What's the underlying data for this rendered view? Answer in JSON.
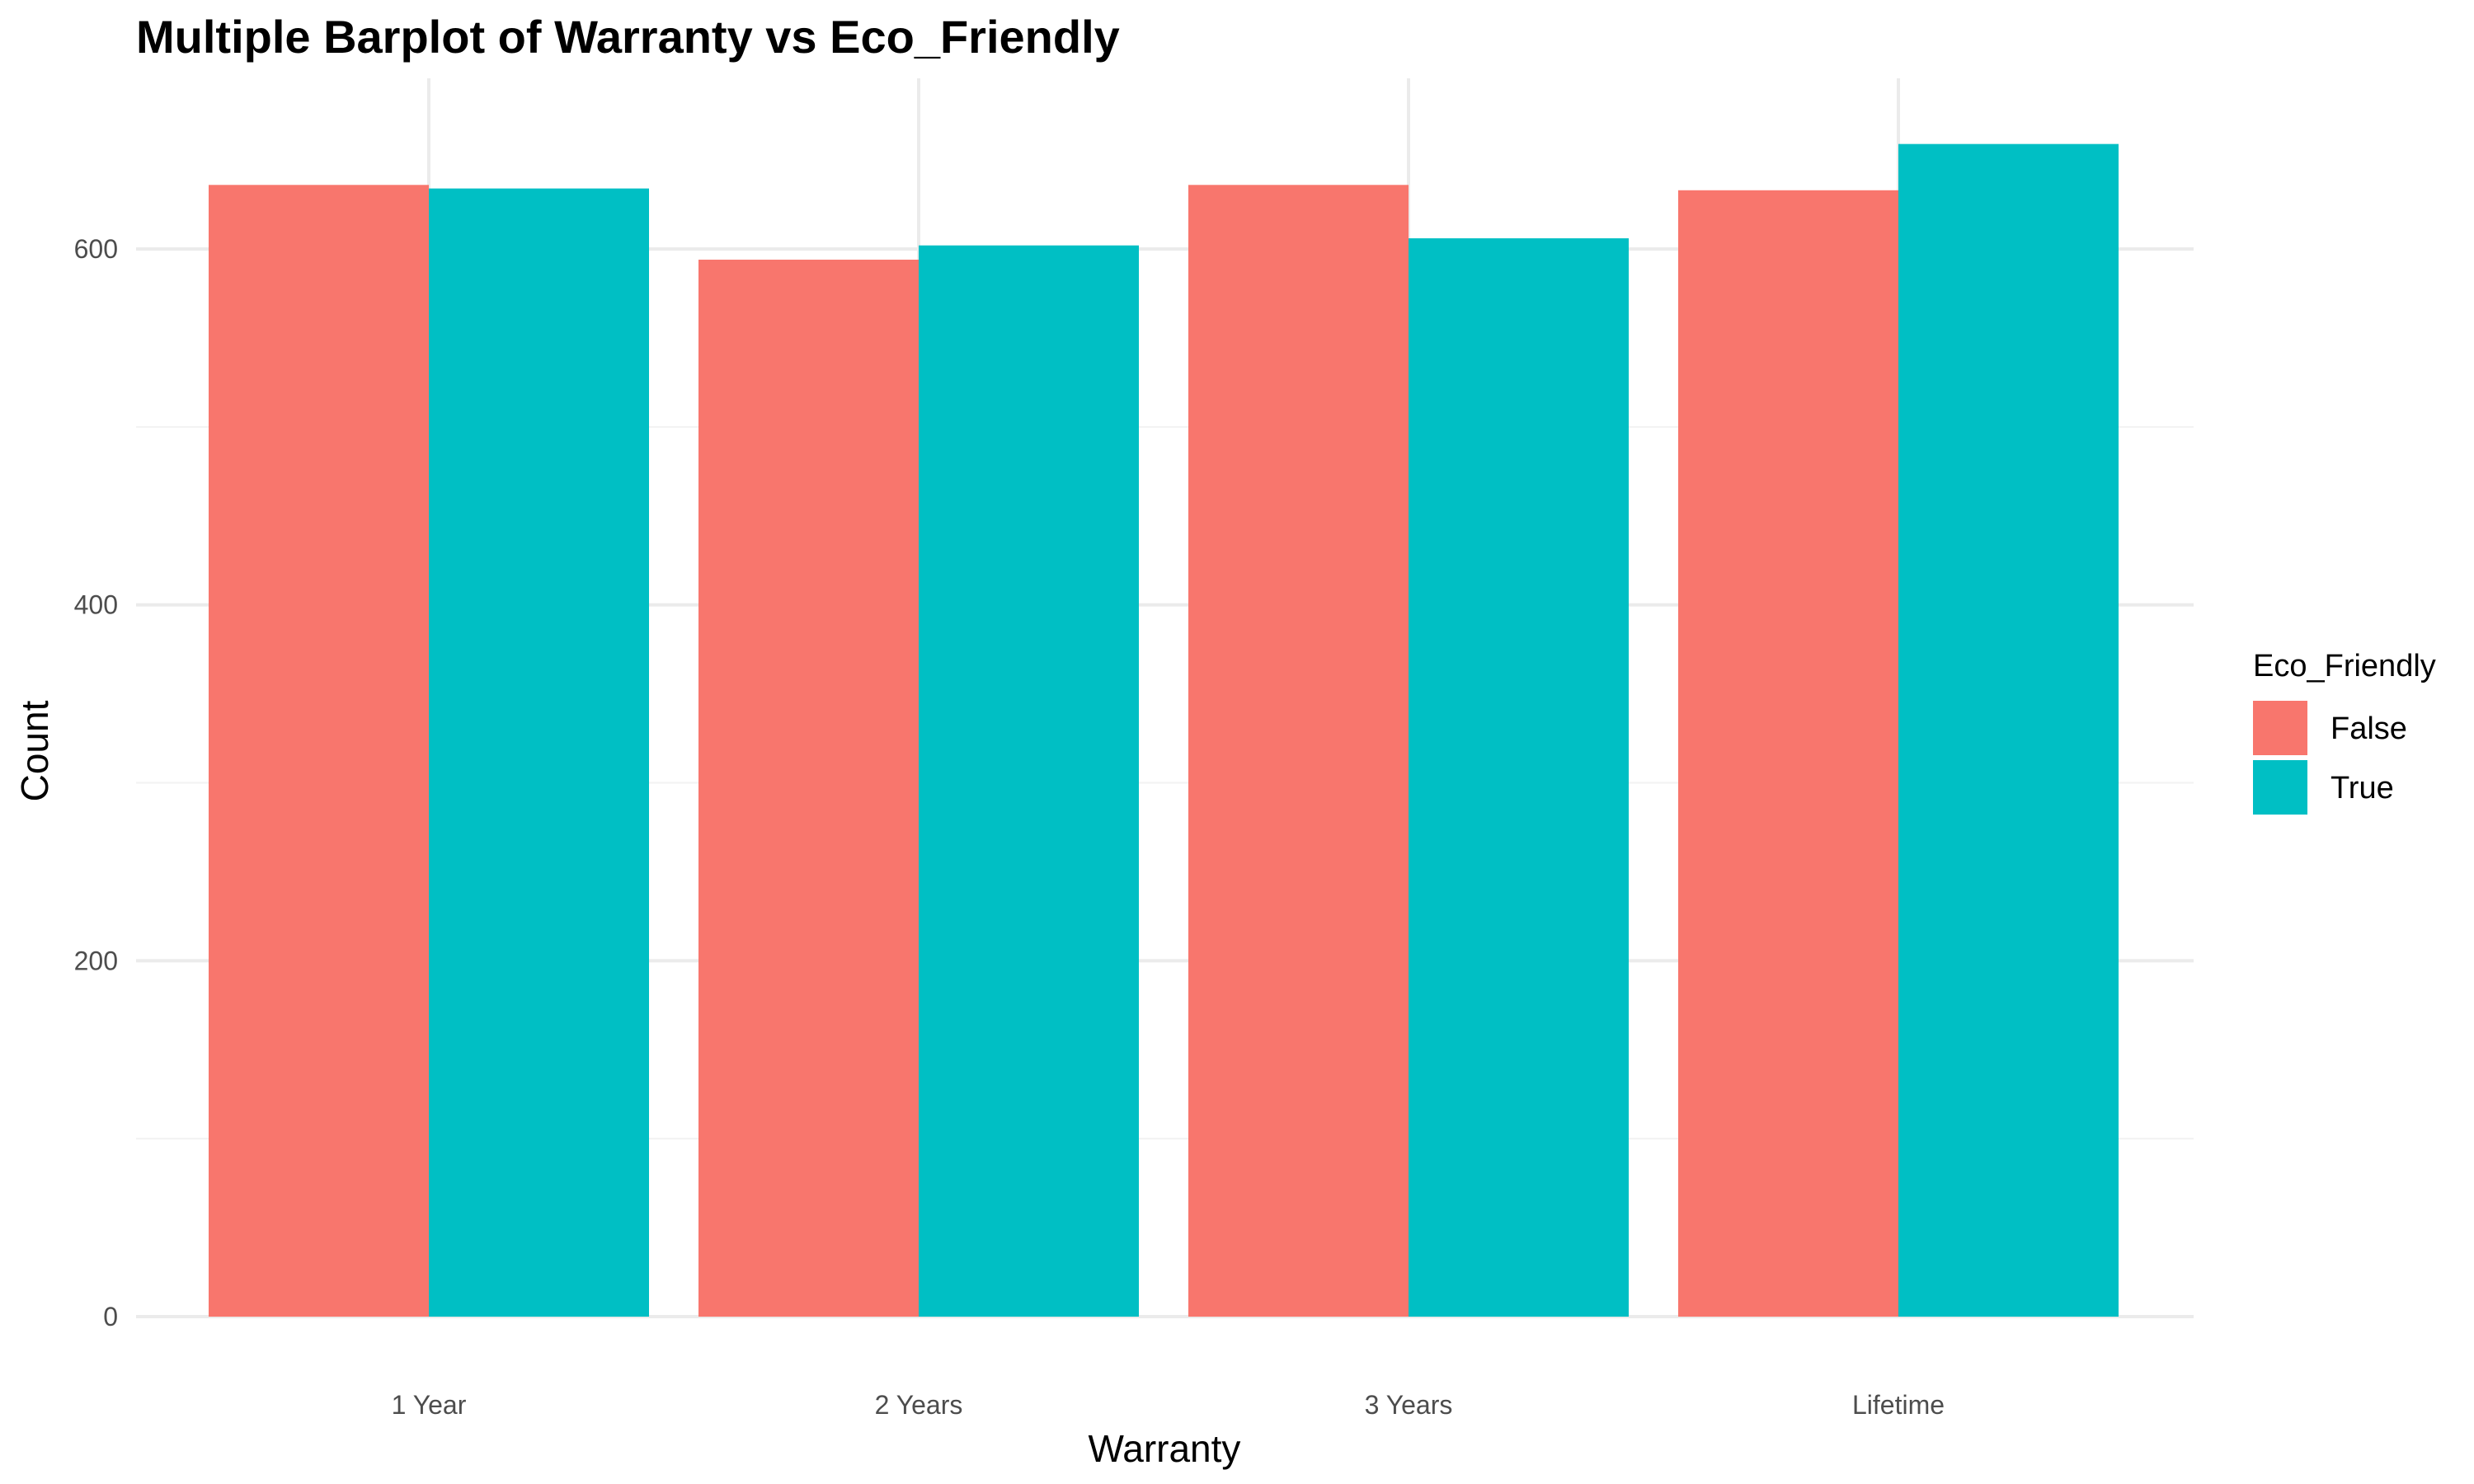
{
  "chart_data": {
    "type": "bar",
    "title": "Multiple Barplot of Warranty vs Eco_Friendly",
    "xlabel": "Warranty",
    "ylabel": "Count",
    "categories": [
      "1 Year",
      "2 Years",
      "3 Years",
      "Lifetime"
    ],
    "series": [
      {
        "name": "False",
        "color": "#F8766D",
        "values": [
          636,
          594,
          636,
          633
        ]
      },
      {
        "name": "True",
        "color": "#00BFC4",
        "values": [
          634,
          602,
          606,
          659
        ]
      }
    ],
    "ylim": [
      0,
      690
    ],
    "yticks": [
      0,
      200,
      400,
      600
    ],
    "y_minor_ticks": [
      100,
      300,
      500
    ],
    "grid": true,
    "legend": {
      "title": "Eco_Friendly",
      "position": "right"
    }
  }
}
